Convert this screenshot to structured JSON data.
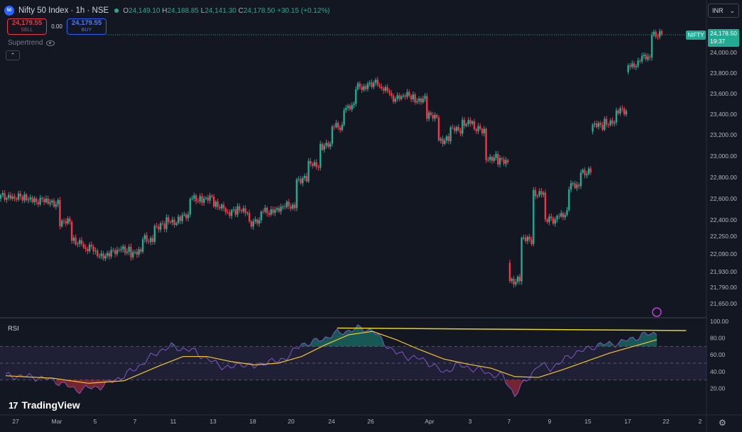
{
  "header": {
    "symbol_badge": "50",
    "title": "Nifty 50 Index · 1h · NSE",
    "ohlc": {
      "o": "24,149.10",
      "h": "24,188.85",
      "l": "24,141.30",
      "c": "24,178.50",
      "chg": "+30.15 (+0.12%)"
    },
    "labels": {
      "o": "O",
      "h": "H",
      "l": "L",
      "c": "C"
    }
  },
  "trade": {
    "sell_price": "24,179.55",
    "sell_label": "SELL",
    "spread": "0.00",
    "buy_price": "24,179.55",
    "buy_label": "BUY"
  },
  "indicator": {
    "name": "Supertrend"
  },
  "currency": "INR",
  "last_price": {
    "symbol": "NIFTY",
    "value": "24,178.50",
    "countdown": "19:37"
  },
  "rsi_label": "RSI",
  "brand": "TradingView",
  "colors": {
    "up": "#22ab94",
    "down": "#f23645",
    "rsi": "#7e57c2",
    "rsi_ma": "#f7c42b",
    "trend": "#e8d41c"
  },
  "chart_data": [
    {
      "type": "candlestick",
      "y_ticks": [
        "24,000.00",
        "23,800.00",
        "23,600.00",
        "23,400.00",
        "23,200.00",
        "23,000.00",
        "22,800.00",
        "22,600.00",
        "22,400.00",
        "22,250.00",
        "22,090.00",
        "21,930.00",
        "21,790.00",
        "21,650.00"
      ],
      "x_ticks": [
        "27",
        "Mar",
        "5",
        "7",
        "11",
        "13",
        "18",
        "20",
        "24",
        "26",
        "Apr",
        "3",
        "7",
        "9",
        "15",
        "17",
        "22",
        "2"
      ],
      "close_path": [
        [
          0,
          22620
        ],
        [
          2,
          22600
        ],
        [
          4,
          22560
        ],
        [
          5,
          22380
        ],
        [
          6,
          22200
        ],
        [
          8,
          22080
        ],
        [
          10,
          22130
        ],
        [
          11,
          22100
        ],
        [
          13,
          22340
        ],
        [
          15,
          22430
        ],
        [
          16,
          22600
        ],
        [
          17,
          22600
        ],
        [
          18,
          22530
        ],
        [
          19,
          22470
        ],
        [
          20,
          22490
        ],
        [
          21,
          22380
        ],
        [
          22,
          22480
        ],
        [
          23,
          22500
        ],
        [
          24,
          22530
        ],
        [
          25,
          22780
        ],
        [
          26,
          22920
        ],
        [
          28,
          23280
        ],
        [
          30,
          23660
        ],
        [
          31,
          23700
        ],
        [
          32,
          23640
        ],
        [
          33,
          23560
        ],
        [
          34,
          23580
        ],
        [
          35,
          23540
        ],
        [
          36,
          23380
        ],
        [
          37,
          23150
        ],
        [
          38,
          23250
        ],
        [
          39,
          23320
        ],
        [
          40,
          23250
        ],
        [
          41,
          22980
        ],
        [
          42,
          22950
        ],
        [
          43,
          21850
        ],
        [
          44,
          22220
        ],
        [
          45,
          22650
        ],
        [
          46,
          22400
        ],
        [
          47,
          22450
        ],
        [
          48,
          22720
        ],
        [
          49,
          22850
        ],
        [
          50,
          23290
        ],
        [
          51,
          23320
        ],
        [
          52,
          23430
        ],
        [
          53,
          23880
        ],
        [
          54,
          23950
        ],
        [
          55,
          24178
        ]
      ]
    },
    {
      "type": "line",
      "name": "RSI",
      "y_ticks": [
        "100.00",
        "80.00",
        "60.00",
        "40.00",
        "20.00"
      ],
      "ylim": [
        0,
        100
      ],
      "bands": [
        30,
        50,
        70
      ],
      "rsi": [
        [
          0,
          35
        ],
        [
          2,
          34
        ],
        [
          4,
          30
        ],
        [
          5,
          24
        ],
        [
          6,
          18
        ],
        [
          8,
          22
        ],
        [
          10,
          35
        ],
        [
          11,
          44
        ],
        [
          13,
          65
        ],
        [
          14,
          70
        ],
        [
          16,
          64
        ],
        [
          17,
          55
        ],
        [
          18,
          48
        ],
        [
          19,
          44
        ],
        [
          20,
          50
        ],
        [
          21,
          45
        ],
        [
          22,
          52
        ],
        [
          23,
          52
        ],
        [
          24,
          60
        ],
        [
          25,
          73
        ],
        [
          26,
          75
        ],
        [
          28,
          86
        ],
        [
          30,
          92
        ],
        [
          31,
          89
        ],
        [
          32,
          74
        ],
        [
          33,
          62
        ],
        [
          34,
          58
        ],
        [
          35,
          55
        ],
        [
          36,
          49
        ],
        [
          37,
          38
        ],
        [
          38,
          48
        ],
        [
          39,
          45
        ],
        [
          40,
          42
        ],
        [
          41,
          37
        ],
        [
          42,
          34
        ],
        [
          43,
          12
        ],
        [
          44,
          30
        ],
        [
          45,
          48
        ],
        [
          46,
          44
        ],
        [
          47,
          52
        ],
        [
          48,
          62
        ],
        [
          49,
          66
        ],
        [
          50,
          72
        ],
        [
          51,
          73
        ],
        [
          52,
          75
        ],
        [
          53,
          80
        ],
        [
          54,
          84
        ],
        [
          55,
          86
        ]
      ],
      "rsi_ma": [
        [
          0,
          35
        ],
        [
          4,
          32
        ],
        [
          7,
          26
        ],
        [
          10,
          29
        ],
        [
          13,
          47
        ],
        [
          15,
          58
        ],
        [
          17,
          58
        ],
        [
          19,
          52
        ],
        [
          21,
          48
        ],
        [
          23,
          50
        ],
        [
          25,
          58
        ],
        [
          27,
          72
        ],
        [
          29,
          84
        ],
        [
          31,
          88
        ],
        [
          33,
          78
        ],
        [
          35,
          66
        ],
        [
          37,
          55
        ],
        [
          39,
          49
        ],
        [
          41,
          44
        ],
        [
          43,
          34
        ],
        [
          45,
          33
        ],
        [
          47,
          42
        ],
        [
          49,
          52
        ],
        [
          51,
          62
        ],
        [
          53,
          70
        ],
        [
          55,
          78
        ]
      ],
      "trend_line": [
        [
          28,
          92
        ],
        [
          57,
          89
        ]
      ]
    }
  ]
}
